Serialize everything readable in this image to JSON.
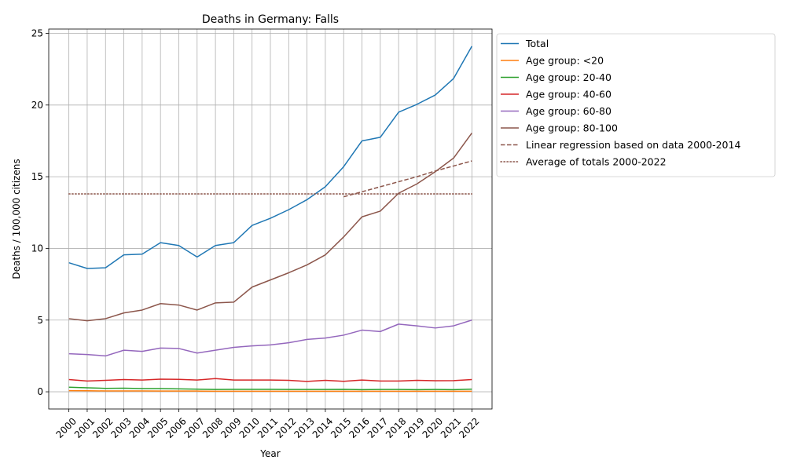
{
  "chart_data": {
    "type": "line",
    "title": "Deaths in Germany: Falls",
    "xlabel": "Year",
    "ylabel": "Deaths / 100,000 citizens",
    "x": [
      2000,
      2001,
      2002,
      2003,
      2004,
      2005,
      2006,
      2007,
      2008,
      2009,
      2010,
      2011,
      2012,
      2013,
      2014,
      2015,
      2016,
      2017,
      2018,
      2019,
      2020,
      2021,
      2022
    ],
    "x_tick_labels": [
      "2000",
      "2001",
      "2002",
      "2003",
      "2004",
      "2005",
      "2006",
      "2007",
      "2008",
      "2009",
      "2010",
      "2011",
      "2012",
      "2013",
      "2014",
      "2015",
      "2016",
      "2017",
      "2018",
      "2019",
      "2020",
      "2021",
      "2022"
    ],
    "xlim": [
      1998.9,
      2023.1
    ],
    "ylim": [
      -1.2,
      25.3
    ],
    "y_ticks": [
      0,
      5,
      10,
      15,
      20,
      25
    ],
    "y_tick_labels": [
      "0",
      "5",
      "10",
      "15",
      "20",
      "25"
    ],
    "grid": true,
    "legend_position": "outside-right-top",
    "series": [
      {
        "name": "Total",
        "color": "#1f77b4",
        "style": "solid",
        "values": [
          9.0,
          8.6,
          8.65,
          9.55,
          9.6,
          10.4,
          10.2,
          9.4,
          10.2,
          10.4,
          11.6,
          12.1,
          12.7,
          13.4,
          14.3,
          15.7,
          17.5,
          17.75,
          19.5,
          20.05,
          20.7,
          21.85,
          24.1
        ]
      },
      {
        "name": "Age group: <20",
        "color": "#ff7f0e",
        "style": "solid",
        "values": [
          0.08,
          0.07,
          0.06,
          0.06,
          0.06,
          0.05,
          0.05,
          0.05,
          0.04,
          0.04,
          0.04,
          0.04,
          0.04,
          0.04,
          0.04,
          0.04,
          0.04,
          0.04,
          0.04,
          0.04,
          0.04,
          0.04,
          0.04
        ]
      },
      {
        "name": "Age group: 20-40",
        "color": "#2ca02c",
        "style": "solid",
        "values": [
          0.32,
          0.28,
          0.24,
          0.25,
          0.22,
          0.22,
          0.2,
          0.18,
          0.16,
          0.17,
          0.17,
          0.17,
          0.16,
          0.16,
          0.16,
          0.17,
          0.15,
          0.16,
          0.16,
          0.15,
          0.16,
          0.15,
          0.18
        ]
      },
      {
        "name": "Age group: 40-60",
        "color": "#d62728",
        "style": "solid",
        "values": [
          0.85,
          0.75,
          0.8,
          0.85,
          0.82,
          0.88,
          0.87,
          0.82,
          0.92,
          0.82,
          0.82,
          0.82,
          0.8,
          0.72,
          0.8,
          0.73,
          0.82,
          0.75,
          0.75,
          0.8,
          0.77,
          0.78,
          0.85
        ]
      },
      {
        "name": "Age group: 60-80",
        "color": "#9467bd",
        "style": "solid",
        "values": [
          2.65,
          2.6,
          2.5,
          2.9,
          2.82,
          3.05,
          3.02,
          2.7,
          2.9,
          3.1,
          3.2,
          3.27,
          3.42,
          3.65,
          3.75,
          3.95,
          4.3,
          4.2,
          4.72,
          4.6,
          4.45,
          4.6,
          5.0
        ]
      },
      {
        "name": "Age group: 80-100",
        "color": "#8c564b",
        "style": "solid",
        "values": [
          5.1,
          4.95,
          5.1,
          5.5,
          5.7,
          6.15,
          6.05,
          5.7,
          6.2,
          6.25,
          7.3,
          7.8,
          8.3,
          8.85,
          9.55,
          10.8,
          12.2,
          12.6,
          13.85,
          14.5,
          15.35,
          16.3,
          18.05
        ]
      },
      {
        "name": "Linear regression based on data 2000-2014",
        "color": "#8c564b",
        "style": "dashed",
        "x": [
          2015,
          2016,
          2017,
          2018,
          2019,
          2020,
          2021,
          2022
        ],
        "values": [
          13.6,
          13.95,
          14.3,
          14.65,
          15.0,
          15.4,
          15.75,
          16.1
        ]
      },
      {
        "name": "Average of totals 2000-2022",
        "color": "#8c564b",
        "style": "dotted",
        "x": [
          2000,
          2022
        ],
        "values": [
          13.8,
          13.8
        ]
      }
    ]
  }
}
